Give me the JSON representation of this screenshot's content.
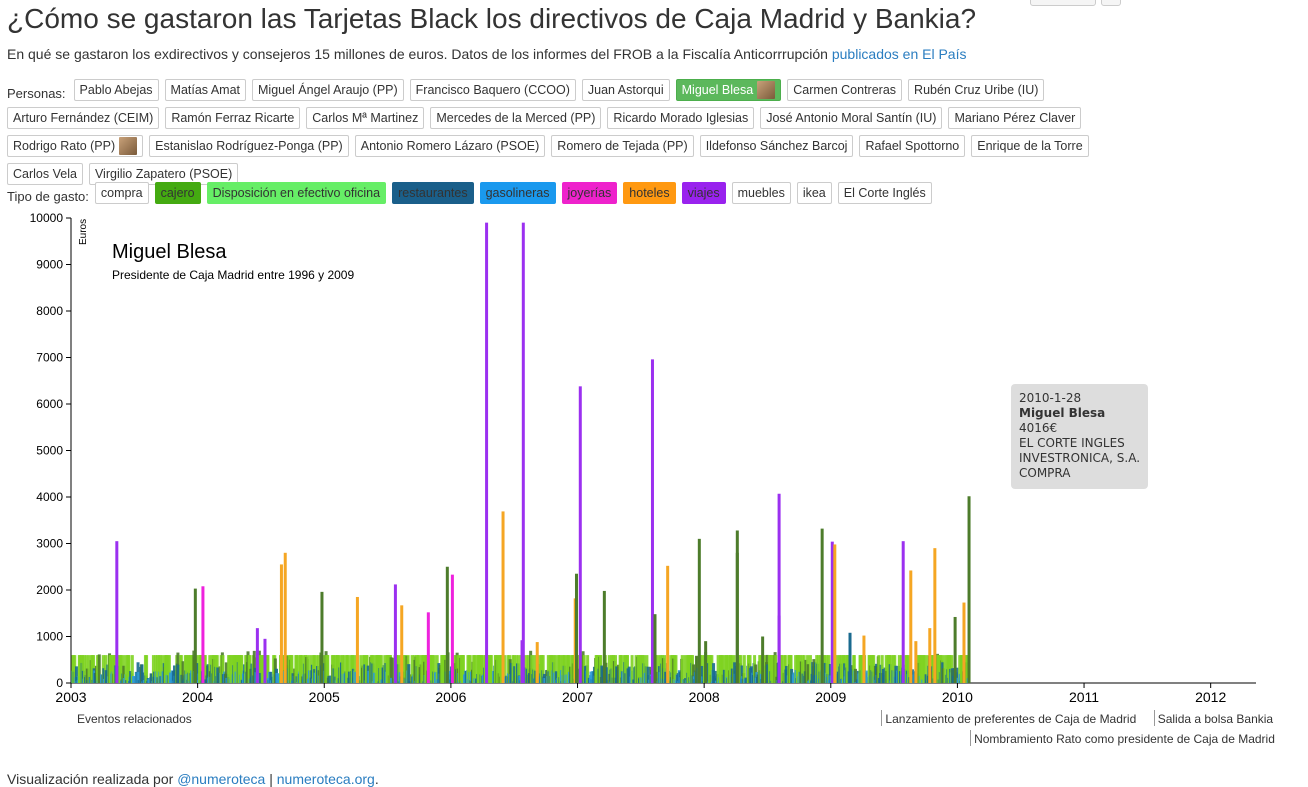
{
  "title": "¿Cómo se gastaron las Tarjetas Black los directivos de Caja Madrid y Bankia?",
  "subtitle": {
    "text": "En qué se gastaron los exdirectivos y consejeros 15 millones de euros. Datos de los informes del FROB a la Fiscalía Anticorrrupción",
    "link": "publicados en El País"
  },
  "persons": {
    "label": "Personas:",
    "items": [
      "Pablo Abejas",
      "Matías Amat",
      "Miguel Ángel Araujo (PP)",
      "Francisco Baquero (CCOO)",
      "Juan Astorqui",
      "Miguel Blesa",
      "Carmen Contreras",
      "Rubén Cruz Uribe (IU)",
      "Arturo Fernández (CEIM)",
      "Ramón Ferraz Ricarte",
      "Carlos Mª Martinez",
      "Mercedes de la Merced (PP)",
      "Ricardo Morado Iglesias",
      "José Antonio Moral Santín (IU)",
      "Mariano Pérez Claver",
      "Rodrigo Rato (PP)",
      "Estanislao Rodríguez-Ponga (PP)",
      "Antonio Romero Lázaro (PSOE)",
      "Romero de Tejada (PP)",
      "Ildefonso Sánchez Barcoj",
      "Rafael Spottorno",
      "Enrique de la Torre",
      "Carlos Vela",
      "Virgilio Zapatero (PSOE)"
    ],
    "selected": "Miguel Blesa",
    "with_photo": [
      "Miguel Blesa",
      "Rodrigo Rato (PP)"
    ]
  },
  "types": {
    "label": "Tipo de gasto:",
    "items": [
      {
        "label": "compra",
        "color": "#ffffff",
        "text": "#333333"
      },
      {
        "label": "cajero",
        "color": "#44aa11",
        "text": "#333333"
      },
      {
        "label": "Disposición en efectivo oficina",
        "color": "#66ee66",
        "text": "#333333"
      },
      {
        "label": "restaurantes",
        "color": "#1a5f8a",
        "text": "#333333"
      },
      {
        "label": "gasolineras",
        "color": "#1a99ee",
        "text": "#333333"
      },
      {
        "label": "joyerías",
        "color": "#ee22cc",
        "text": "#333333"
      },
      {
        "label": "hoteles",
        "color": "#ff9911",
        "text": "#333333"
      },
      {
        "label": "viajes",
        "color": "#9922ee",
        "text": "#333333"
      },
      {
        "label": "muebles",
        "color": "#ffffff",
        "text": "#333333"
      },
      {
        "label": "ikea",
        "color": "#ffffff",
        "text": "#333333"
      },
      {
        "label": "El Corte Inglés",
        "color": "#ffffff",
        "text": "#333333"
      }
    ]
  },
  "chart_data": {
    "type": "bar",
    "ylabel": "Euros",
    "ylim": [
      0,
      10000
    ],
    "yticks": [
      "0",
      "1000",
      "2000",
      "3000",
      "4000",
      "5000",
      "6000",
      "7000",
      "8000",
      "9000",
      "10000"
    ],
    "xlim": [
      2003,
      2012.2
    ],
    "xticks": [
      "2003",
      "2004",
      "2005",
      "2006",
      "2007",
      "2008",
      "2009",
      "2010",
      "2011",
      "2012"
    ],
    "person_name": "Miguel Blesa",
    "person_role": "Presidente de Caja Madrid entre 1996 y 2009",
    "series_colors": {
      "cajero": "#4d7c2b",
      "efectivo": "#7ed321",
      "restaurantes": "#1a6a8f",
      "gasolineras": "#2d9bd6",
      "joyerias": "#ee22dd",
      "hoteles": "#f5a623",
      "viajes": "#9b30f0"
    },
    "highlights": [
      {
        "date": "2003.35",
        "type": "viajes",
        "value": 3050
      },
      {
        "date": "2003.97",
        "type": "cajero",
        "value": 2030
      },
      {
        "date": "2004.03",
        "type": "joyerias",
        "value": 2080
      },
      {
        "date": "2004.46",
        "type": "viajes",
        "value": 1180
      },
      {
        "date": "2004.52",
        "type": "viajes",
        "value": 950
      },
      {
        "date": "2004.65",
        "type": "hoteles",
        "value": 2550
      },
      {
        "date": "2004.68",
        "type": "hoteles",
        "value": 2800
      },
      {
        "date": "2004.97",
        "type": "cajero",
        "value": 1960
      },
      {
        "date": "2005.25",
        "type": "hoteles",
        "value": 1850
      },
      {
        "date": "2005.55",
        "type": "viajes",
        "value": 2120
      },
      {
        "date": "2005.6",
        "type": "hoteles",
        "value": 1670
      },
      {
        "date": "2005.81",
        "type": "joyerias",
        "value": 1520
      },
      {
        "date": "2005.96",
        "type": "cajero",
        "value": 2500
      },
      {
        "date": "2006.0",
        "type": "joyerias",
        "value": 2330
      },
      {
        "date": "2006.27",
        "type": "viajes",
        "value": 9900
      },
      {
        "date": "2006.4",
        "type": "hoteles",
        "value": 3690
      },
      {
        "date": "2006.56",
        "type": "viajes",
        "value": 9900
      },
      {
        "date": "2006.55",
        "type": "viajes",
        "value": 920
      },
      {
        "date": "2006.67",
        "type": "hoteles",
        "value": 880
      },
      {
        "date": "2006.97",
        "type": "hoteles",
        "value": 1820
      },
      {
        "date": "2006.98",
        "type": "cajero",
        "value": 2350
      },
      {
        "date": "2007.01",
        "type": "viajes",
        "value": 6380
      },
      {
        "date": "2007.2",
        "type": "cajero",
        "value": 1980
      },
      {
        "date": "2007.58",
        "type": "viajes",
        "value": 6960
      },
      {
        "date": "2007.6",
        "type": "cajero",
        "value": 1480
      },
      {
        "date": "2007.7",
        "type": "hoteles",
        "value": 2520
      },
      {
        "date": "2007.95",
        "type": "cajero",
        "value": 3100
      },
      {
        "date": "2008.0",
        "type": "cajero",
        "value": 900
      },
      {
        "date": "2008.25",
        "type": "cajero",
        "value": 3280
      },
      {
        "date": "2008.25",
        "type": "cajero",
        "value": 2800
      },
      {
        "date": "2008.45",
        "type": "cajero",
        "value": 1000
      },
      {
        "date": "2008.58",
        "type": "viajes",
        "value": 4070
      },
      {
        "date": "2008.58",
        "type": "viajes",
        "value": 1450
      },
      {
        "date": "2008.92",
        "type": "cajero",
        "value": 3320
      },
      {
        "date": "2009.0",
        "type": "viajes",
        "value": 3040
      },
      {
        "date": "2009.02",
        "type": "hoteles",
        "value": 2980
      },
      {
        "date": "2009.14",
        "type": "restaurantes",
        "value": 1080
      },
      {
        "date": "2009.25",
        "type": "hoteles",
        "value": 1020
      },
      {
        "date": "2009.56",
        "type": "viajes",
        "value": 3050
      },
      {
        "date": "2009.62",
        "type": "hoteles",
        "value": 2420
      },
      {
        "date": "2009.66",
        "type": "hoteles",
        "value": 900
      },
      {
        "date": "2009.77",
        "type": "hoteles",
        "value": 1180
      },
      {
        "date": "2009.81",
        "type": "hoteles",
        "value": 2900
      },
      {
        "date": "2009.97",
        "type": "cajero",
        "value": 1420
      },
      {
        "date": "2010.04",
        "type": "hoteles",
        "value": 1730
      },
      {
        "date": "2010.08",
        "type": "cajero",
        "value": 4016
      }
    ],
    "tooltip": {
      "date": "2010-1-28",
      "name": "Miguel Blesa",
      "amount": "4016€",
      "merchant_line1": "EL CORTE INGLES",
      "merchant_line2": "INVESTRONICA, S.A.",
      "category": "COMPRA"
    }
  },
  "events": {
    "label": "Eventos relacionados",
    "items": [
      {
        "label": "Lanzamiento de preferentes de Caja de Madrid",
        "date": "2009.4"
      },
      {
        "label": "Salida a bolsa Bankia",
        "date": "2011.55"
      },
      {
        "label": "Nombramiento Rato como presidente de Caja de Madrid",
        "date": "2010.1"
      }
    ]
  },
  "footer": {
    "text": "Visualización realizada por",
    "link1": "@numeroteca",
    "sep": "|",
    "link2": "numeroteca.org",
    "end": "."
  }
}
